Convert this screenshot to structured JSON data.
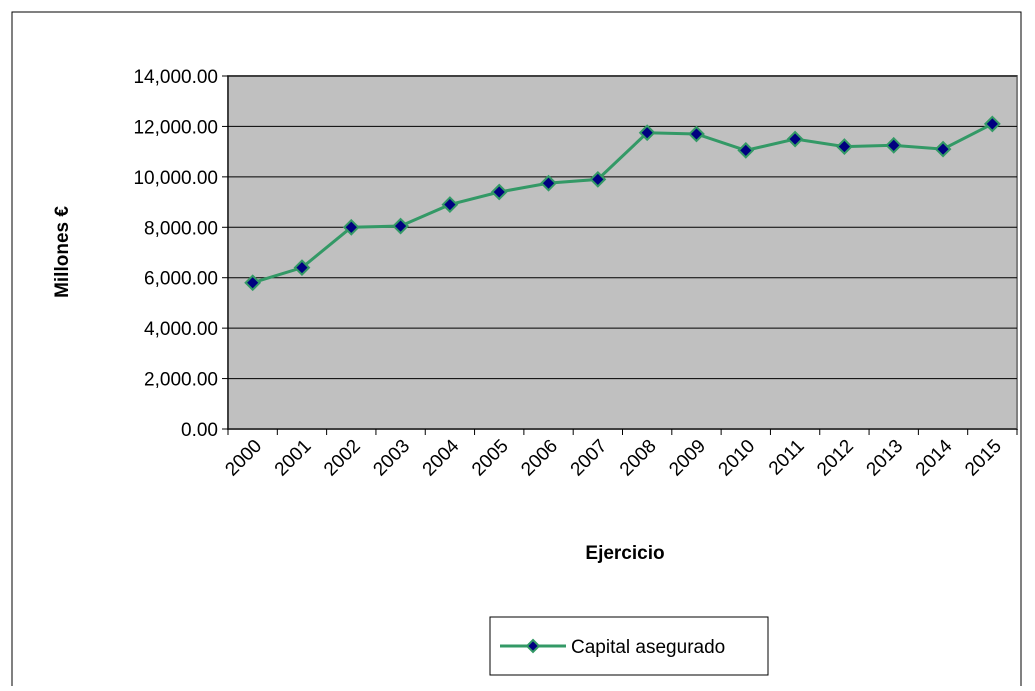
{
  "chart_data": {
    "type": "line",
    "categories": [
      "2000",
      "2001",
      "2002",
      "2003",
      "2004",
      "2005",
      "2006",
      "2007",
      "2008",
      "2009",
      "2010",
      "2011",
      "2012",
      "2013",
      "2014",
      "2015"
    ],
    "series": [
      {
        "name": "Capital asegurado",
        "color": "#339966",
        "marker_color": "#000080",
        "values": [
          5800,
          6400,
          8000,
          8050,
          8900,
          9400,
          9750,
          9900,
          11750,
          11700,
          11050,
          11500,
          11200,
          11250,
          11100,
          12100
        ]
      }
    ],
    "ylim": [
      0,
      14000
    ],
    "yticks": [
      {
        "value": 0,
        "label": "0.00"
      },
      {
        "value": 2000,
        "label": "2,000.00"
      },
      {
        "value": 4000,
        "label": "4,000.00"
      },
      {
        "value": 6000,
        "label": "6,000.00"
      },
      {
        "value": 8000,
        "label": "8,000.00"
      },
      {
        "value": 10000,
        "label": "10,000.00"
      },
      {
        "value": 12000,
        "label": "12,000.00"
      },
      {
        "value": 14000,
        "label": "14,000.00"
      }
    ],
    "xlabel": "Ejercicio",
    "ylabel": "Millones €",
    "grid": true,
    "legend": "bottom",
    "plot_background": "#c0c0c0"
  }
}
